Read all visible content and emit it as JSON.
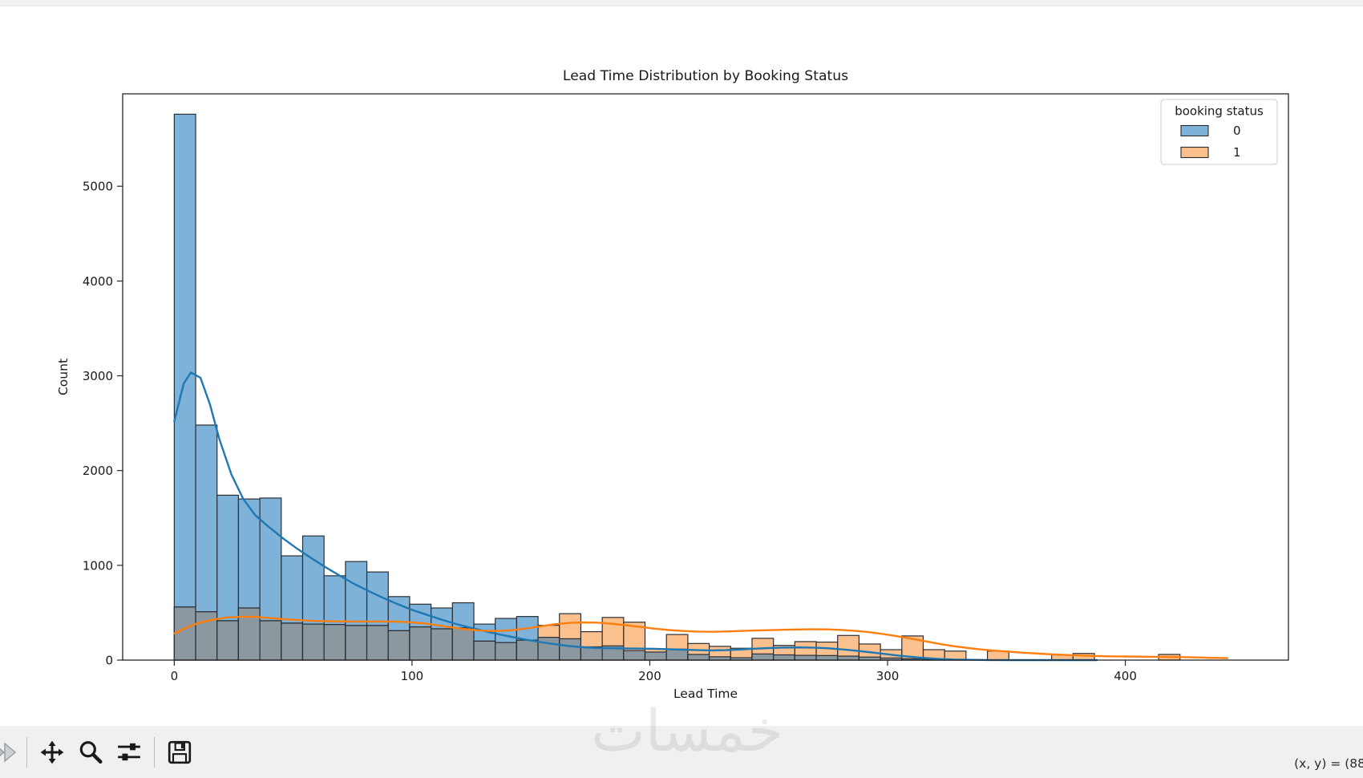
{
  "chart_data": {
    "type": "histogram+kde",
    "title": "Lead Time Distribution by Booking Status",
    "xlabel": "Lead Time",
    "ylabel": "Count",
    "xlim": [
      -21.7,
      468.6
    ],
    "ylim": [
      0,
      5975
    ],
    "x_ticks": [
      0,
      100,
      200,
      300,
      400
    ],
    "y_ticks": [
      0,
      1000,
      2000,
      3000,
      4000,
      5000
    ],
    "grid": false,
    "bin_start": 0,
    "bin_width": 9,
    "overlap_fill": "#8C98A0",
    "edge_color": "#2b2f33",
    "legend": {
      "title": "booking status",
      "position": "upper right",
      "entries": [
        {
          "label": "0",
          "fill": "#7EB2D8"
        },
        {
          "label": "1",
          "fill": "#FAC08D"
        }
      ]
    },
    "series": [
      {
        "name": "0",
        "role": "histogram",
        "fill": "#7EB2D8",
        "values": [
          5760,
          2480,
          1740,
          1700,
          1710,
          1100,
          1310,
          890,
          1040,
          930,
          670,
          590,
          550,
          605,
          380,
          440,
          460,
          240,
          225,
          140,
          150,
          100,
          85,
          115,
          60,
          35,
          25,
          65,
          55,
          50,
          48,
          42,
          32,
          22,
          14,
          9,
          5,
          3,
          2,
          0,
          0,
          0,
          0,
          0,
          0,
          0,
          0,
          0,
          0,
          0
        ]
      },
      {
        "name": "1",
        "role": "histogram",
        "fill": "#FAC08D",
        "values": [
          560,
          510,
          415,
          550,
          415,
          390,
          380,
          375,
          365,
          365,
          310,
          350,
          330,
          340,
          200,
          185,
          210,
          367,
          490,
          300,
          450,
          400,
          115,
          270,
          175,
          145,
          125,
          230,
          155,
          195,
          190,
          260,
          170,
          110,
          255,
          110,
          95,
          0,
          95,
          0,
          0,
          55,
          70,
          0,
          0,
          0,
          60,
          0,
          0,
          0
        ]
      }
    ],
    "kde": [
      {
        "name": "0",
        "color": "#1f77b4",
        "points": [
          [
            0,
            2520
          ],
          [
            4,
            2920
          ],
          [
            7,
            3035
          ],
          [
            11,
            2980
          ],
          [
            15,
            2700
          ],
          [
            19,
            2330
          ],
          [
            24,
            1960
          ],
          [
            29,
            1700
          ],
          [
            34,
            1530
          ],
          [
            40,
            1400
          ],
          [
            46,
            1280
          ],
          [
            52,
            1170
          ],
          [
            58,
            1070
          ],
          [
            64,
            975
          ],
          [
            70,
            885
          ],
          [
            76,
            800
          ],
          [
            82,
            725
          ],
          [
            88,
            655
          ],
          [
            94,
            590
          ],
          [
            100,
            530
          ],
          [
            106,
            480
          ],
          [
            112,
            430
          ],
          [
            118,
            385
          ],
          [
            124,
            345
          ],
          [
            130,
            308
          ],
          [
            136,
            275
          ],
          [
            142,
            245
          ],
          [
            148,
            215
          ],
          [
            154,
            190
          ],
          [
            160,
            168
          ],
          [
            166,
            148
          ],
          [
            172,
            135
          ],
          [
            178,
            128
          ],
          [
            184,
            125
          ],
          [
            190,
            123
          ],
          [
            196,
            121
          ],
          [
            202,
            119
          ],
          [
            208,
            115
          ],
          [
            214,
            110
          ],
          [
            220,
            105
          ],
          [
            226,
            102
          ],
          [
            232,
            105
          ],
          [
            238,
            112
          ],
          [
            244,
            120
          ],
          [
            250,
            127
          ],
          [
            256,
            132
          ],
          [
            262,
            134
          ],
          [
            268,
            132
          ],
          [
            274,
            126
          ],
          [
            280,
            115
          ],
          [
            286,
            101
          ],
          [
            292,
            85
          ],
          [
            298,
            67
          ],
          [
            304,
            49
          ],
          [
            310,
            34
          ],
          [
            316,
            21
          ],
          [
            322,
            12
          ],
          [
            328,
            6
          ],
          [
            334,
            3
          ],
          [
            342,
            1
          ],
          [
            352,
            0
          ],
          [
            370,
            0
          ],
          [
            388,
            0
          ]
        ]
      },
      {
        "name": "1",
        "color": "#ff7f0e",
        "points": [
          [
            0,
            283
          ],
          [
            5,
            340
          ],
          [
            10,
            390
          ],
          [
            16,
            425
          ],
          [
            22,
            450
          ],
          [
            28,
            458
          ],
          [
            34,
            455
          ],
          [
            40,
            445
          ],
          [
            46,
            432
          ],
          [
            52,
            422
          ],
          [
            58,
            414
          ],
          [
            64,
            410
          ],
          [
            70,
            408
          ],
          [
            76,
            407
          ],
          [
            82,
            407
          ],
          [
            88,
            407
          ],
          [
            94,
            406
          ],
          [
            100,
            398
          ],
          [
            106,
            384
          ],
          [
            112,
            362
          ],
          [
            118,
            340
          ],
          [
            124,
            322
          ],
          [
            130,
            310
          ],
          [
            136,
            307
          ],
          [
            142,
            316
          ],
          [
            148,
            334
          ],
          [
            154,
            356
          ],
          [
            160,
            378
          ],
          [
            166,
            392
          ],
          [
            172,
            398
          ],
          [
            178,
            395
          ],
          [
            184,
            383
          ],
          [
            190,
            368
          ],
          [
            196,
            350
          ],
          [
            202,
            332
          ],
          [
            208,
            317
          ],
          [
            214,
            307
          ],
          [
            220,
            301
          ],
          [
            226,
            299
          ],
          [
            232,
            302
          ],
          [
            238,
            307
          ],
          [
            244,
            312
          ],
          [
            250,
            316
          ],
          [
            256,
            320
          ],
          [
            262,
            323
          ],
          [
            268,
            325
          ],
          [
            274,
            324
          ],
          [
            280,
            319
          ],
          [
            286,
            310
          ],
          [
            292,
            295
          ],
          [
            298,
            276
          ],
          [
            304,
            252
          ],
          [
            310,
            226
          ],
          [
            316,
            198
          ],
          [
            322,
            170
          ],
          [
            328,
            146
          ],
          [
            334,
            127
          ],
          [
            340,
            111
          ],
          [
            346,
            98
          ],
          [
            352,
            87
          ],
          [
            358,
            77
          ],
          [
            364,
            68
          ],
          [
            370,
            60
          ],
          [
            376,
            53
          ],
          [
            382,
            47
          ],
          [
            388,
            43
          ],
          [
            394,
            40
          ],
          [
            400,
            38
          ],
          [
            406,
            36
          ],
          [
            412,
            35
          ],
          [
            418,
            33
          ],
          [
            424,
            31
          ],
          [
            430,
            28
          ],
          [
            436,
            24
          ],
          [
            443,
            20
          ]
        ]
      }
    ]
  },
  "toolbar": {
    "buttons": [
      "forward",
      "pan",
      "zoom-to-rect",
      "configure-subplots",
      "save-figure"
    ],
    "status": "(x, y) = (88"
  },
  "watermark": "خمسات"
}
